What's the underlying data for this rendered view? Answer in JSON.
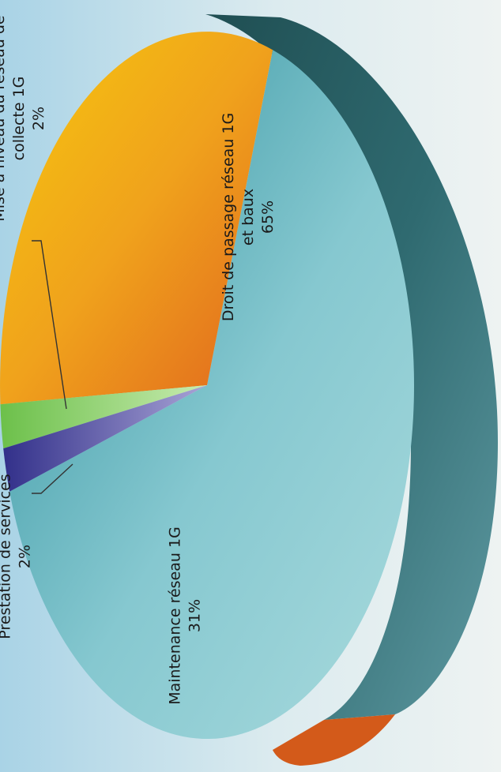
{
  "chart_data": {
    "type": "pie",
    "title": "",
    "slices": [
      {
        "name": "Droit de passage réseau 1G et baux",
        "value": 65,
        "label_lines": [
          "Droit de passage réseau 1G",
          "et baux",
          "65%"
        ],
        "color": "#7cc2cc"
      },
      {
        "name": "Maintenance réseau 1G",
        "value": 31,
        "label_lines": [
          "Maintenance réseau 1G",
          "31%"
        ],
        "color": "#f0a21c"
      },
      {
        "name": "Prestation de services",
        "value": 2,
        "label_lines": [
          "Prestation de services",
          "2%"
        ],
        "color": "#8fd06a"
      },
      {
        "name": "Mise à niveau du réseau de collecte 1G",
        "value": 2,
        "label_lines": [
          "Mise à niveau du réseau de",
          "collecte 1G",
          "2%"
        ],
        "color": "#4d4aa0"
      }
    ]
  }
}
